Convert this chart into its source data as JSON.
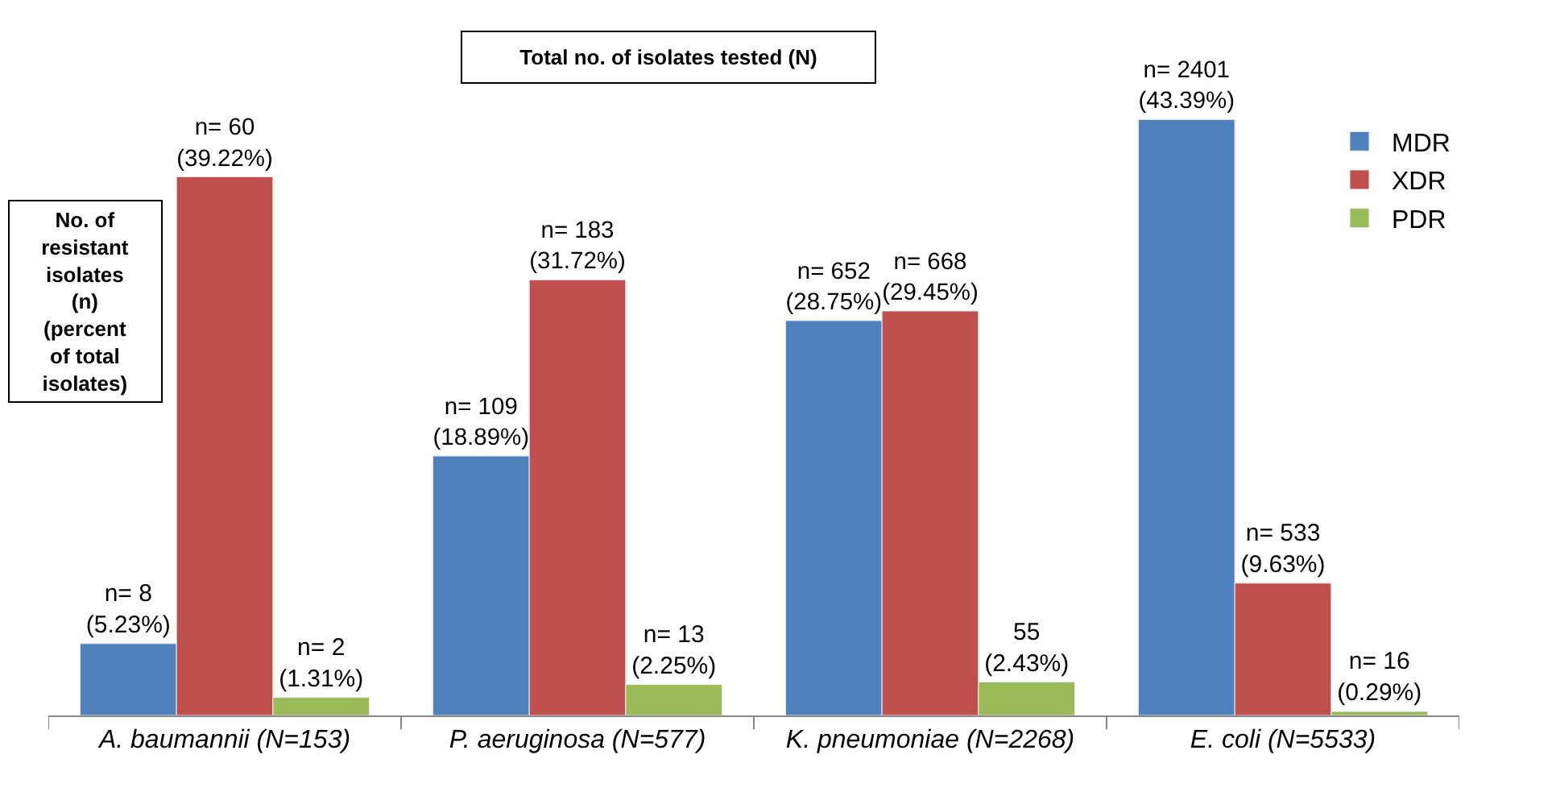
{
  "chart_data": {
    "type": "bar",
    "categories": [
      "A. baumannii (N=153)",
      "P. aeruginosa (N=577)",
      "K. pneumoniae (N=2268)",
      "E. coli (N=5533)"
    ],
    "series": [
      {
        "name": "MDR",
        "color": "#4f81bd",
        "values": [
          5.23,
          18.89,
          28.75,
          43.39
        ],
        "value_labels": [
          "n= 8\n(5.23%)",
          "n= 109\n(18.89%)",
          "n= 652\n(28.75%)",
          "n= 2401\n(43.39%)"
        ]
      },
      {
        "name": "XDR",
        "color": "#c0504d",
        "values": [
          39.22,
          31.72,
          29.45,
          9.63
        ],
        "value_labels": [
          "n= 60\n(39.22%)",
          "n= 183\n(31.72%)",
          "n= 668\n(29.45%)",
          "n= 533\n(9.63%)"
        ]
      },
      {
        "name": "PDR",
        "color": "#9bbb59",
        "values": [
          1.31,
          2.25,
          2.43,
          0.29
        ],
        "value_labels": [
          "n= 2\n(1.31%)",
          "n= 13\n(2.25%)",
          "55\n(2.43%)",
          "n= 16\n(0.29%)"
        ]
      }
    ],
    "annotations": [
      "Total no. of isolates tested (N)",
      "No. of\nresistant\nisolates\n(n)\n(percent\nof total\nisolates)"
    ],
    "legend": "top right",
    "tick_labels": "x"
  }
}
